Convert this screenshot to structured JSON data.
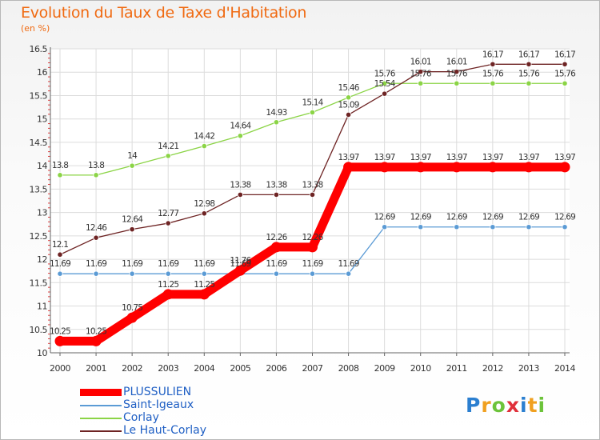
{
  "header": {
    "title": "Evolution du Taux de Taxe d'Habitation",
    "unit": "(en %)"
  },
  "chart_data": {
    "type": "line",
    "categories": [
      "2000",
      "2001",
      "2002",
      "2003",
      "2004",
      "2005",
      "2006",
      "2007",
      "2008",
      "2009",
      "2010",
      "2011",
      "2012",
      "2013",
      "2014"
    ],
    "ylim": [
      10,
      16.5
    ],
    "yticks": [
      "10",
      "10.5",
      "11",
      "11.5",
      "12",
      "12.5",
      "13",
      "13.5",
      "14",
      "14.5",
      "15",
      "15.5",
      "16",
      "16.5"
    ],
    "grid": true,
    "legend_position": "bottom-left",
    "series": [
      {
        "name": "PLUSSULIEN",
        "color": "#ff0000",
        "values": [
          10.25,
          10.25,
          10.75,
          11.25,
          11.25,
          11.76,
          12.26,
          12.26,
          13.97,
          13.97,
          13.97,
          13.97,
          13.97,
          13.97,
          13.97
        ],
        "labels": [
          "10.25",
          "10.25",
          "10.75",
          "11.25",
          "11.25",
          "11.76",
          "12.26",
          "12.26",
          "13.97",
          "13.97",
          "13.97",
          "13.97",
          "13.97",
          "13.97",
          "13.97"
        ]
      },
      {
        "name": "Saint-Igeaux",
        "color": "#5b9bd5",
        "values": [
          11.69,
          11.69,
          11.69,
          11.69,
          11.69,
          11.69,
          11.69,
          11.69,
          11.69,
          12.69,
          12.69,
          12.69,
          12.69,
          12.69,
          12.69
        ],
        "labels": [
          "11.69",
          "11.69",
          "11.69",
          "11.69",
          "11.69",
          "11.69",
          "11.69",
          "11.69",
          "11.69",
          "12.69",
          "12.69",
          "12.69",
          "12.69",
          "12.69",
          "12.69"
        ]
      },
      {
        "name": "Corlay",
        "color": "#8bd446",
        "values": [
          13.8,
          13.8,
          14,
          14.21,
          14.42,
          14.64,
          14.93,
          15.14,
          15.46,
          15.76,
          15.76,
          15.76,
          15.76,
          15.76,
          15.76
        ],
        "labels": [
          "13.8",
          "13.8",
          "14",
          "14.21",
          "14.42",
          "14.64",
          "14.93",
          "15.14",
          "15.46",
          "15.76",
          "15.76",
          "15.76",
          "15.76",
          "15.76",
          "15.76"
        ]
      },
      {
        "name": "Le Haut-Corlay",
        "color": "#6e2424",
        "values": [
          12.1,
          12.46,
          12.64,
          12.77,
          12.98,
          13.38,
          13.38,
          13.38,
          15.09,
          15.54,
          16.01,
          16.01,
          16.17,
          16.17,
          16.17
        ],
        "labels": [
          "12.1",
          "12.46",
          "12.64",
          "12.77",
          "12.98",
          "13.38",
          "13.38",
          "13.38",
          "15.09",
          "15.54",
          "16.01",
          "16.01",
          "16.17",
          "16.17",
          "16.17"
        ]
      }
    ]
  },
  "legend": {
    "items": [
      "PLUSSULIEN",
      "Saint-Igeaux",
      "Corlay",
      "Le Haut-Corlay"
    ]
  },
  "brand": {
    "letters": [
      "P",
      "r",
      "o",
      "x",
      "i",
      "t",
      "i"
    ],
    "colors": [
      "#2b7fd0",
      "#f0a020",
      "#6cc33a",
      "#e0303a",
      "#2b7fd0",
      "#f0a020",
      "#6cc33a"
    ]
  }
}
